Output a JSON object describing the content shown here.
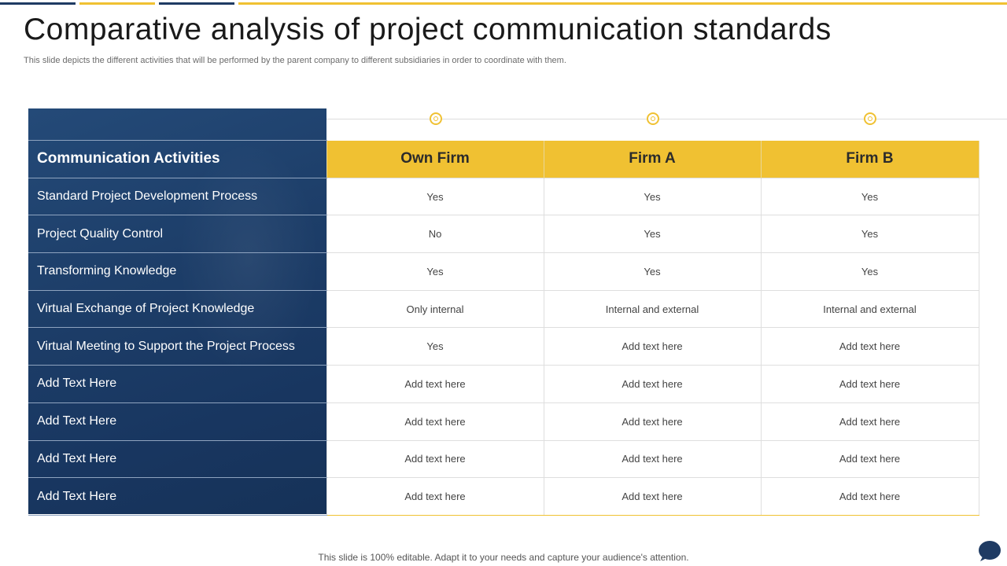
{
  "title": "Comparative analysis of project communication standards",
  "subtitle": "This slide depicts the different activities that will be performed by the parent company to different subsidiaries in order to coordinate with them.",
  "table": {
    "headers": [
      "Communication Activities",
      "Own Firm",
      "Firm A",
      "Firm B"
    ],
    "rows": [
      {
        "activity": "Standard Project Development Process",
        "values": [
          "Yes",
          "Yes",
          "Yes"
        ]
      },
      {
        "activity": "Project Quality Control",
        "values": [
          "No",
          "Yes",
          "Yes"
        ]
      },
      {
        "activity": "Transforming Knowledge",
        "values": [
          "Yes",
          "Yes",
          "Yes"
        ]
      },
      {
        "activity": "Virtual Exchange of Project Knowledge",
        "values": [
          "Only internal",
          "Internal and external",
          "Internal and external"
        ]
      },
      {
        "activity": "Virtual Meeting to Support the Project Process",
        "values": [
          "Yes",
          "Add text here",
          "Add text here"
        ]
      },
      {
        "activity": "Add Text Here",
        "values": [
          "Add text here",
          "Add text here",
          "Add text here"
        ]
      },
      {
        "activity": "Add Text Here",
        "values": [
          "Add text here",
          "Add text here",
          "Add text here"
        ]
      },
      {
        "activity": "Add Text Here",
        "values": [
          "Add text here",
          "Add text here",
          "Add text here"
        ]
      },
      {
        "activity": "Add Text Here",
        "values": [
          "Add text here",
          "Add text here",
          "Add text here"
        ]
      }
    ]
  },
  "footer": "This slide is 100% editable. Adapt it to your needs and capture your audience's attention.",
  "colors": {
    "navy": "#1f3b63",
    "gold": "#f0c132"
  },
  "icons": {
    "marker": "circle-marker-icon",
    "chat": "chat-bubble-icon"
  }
}
